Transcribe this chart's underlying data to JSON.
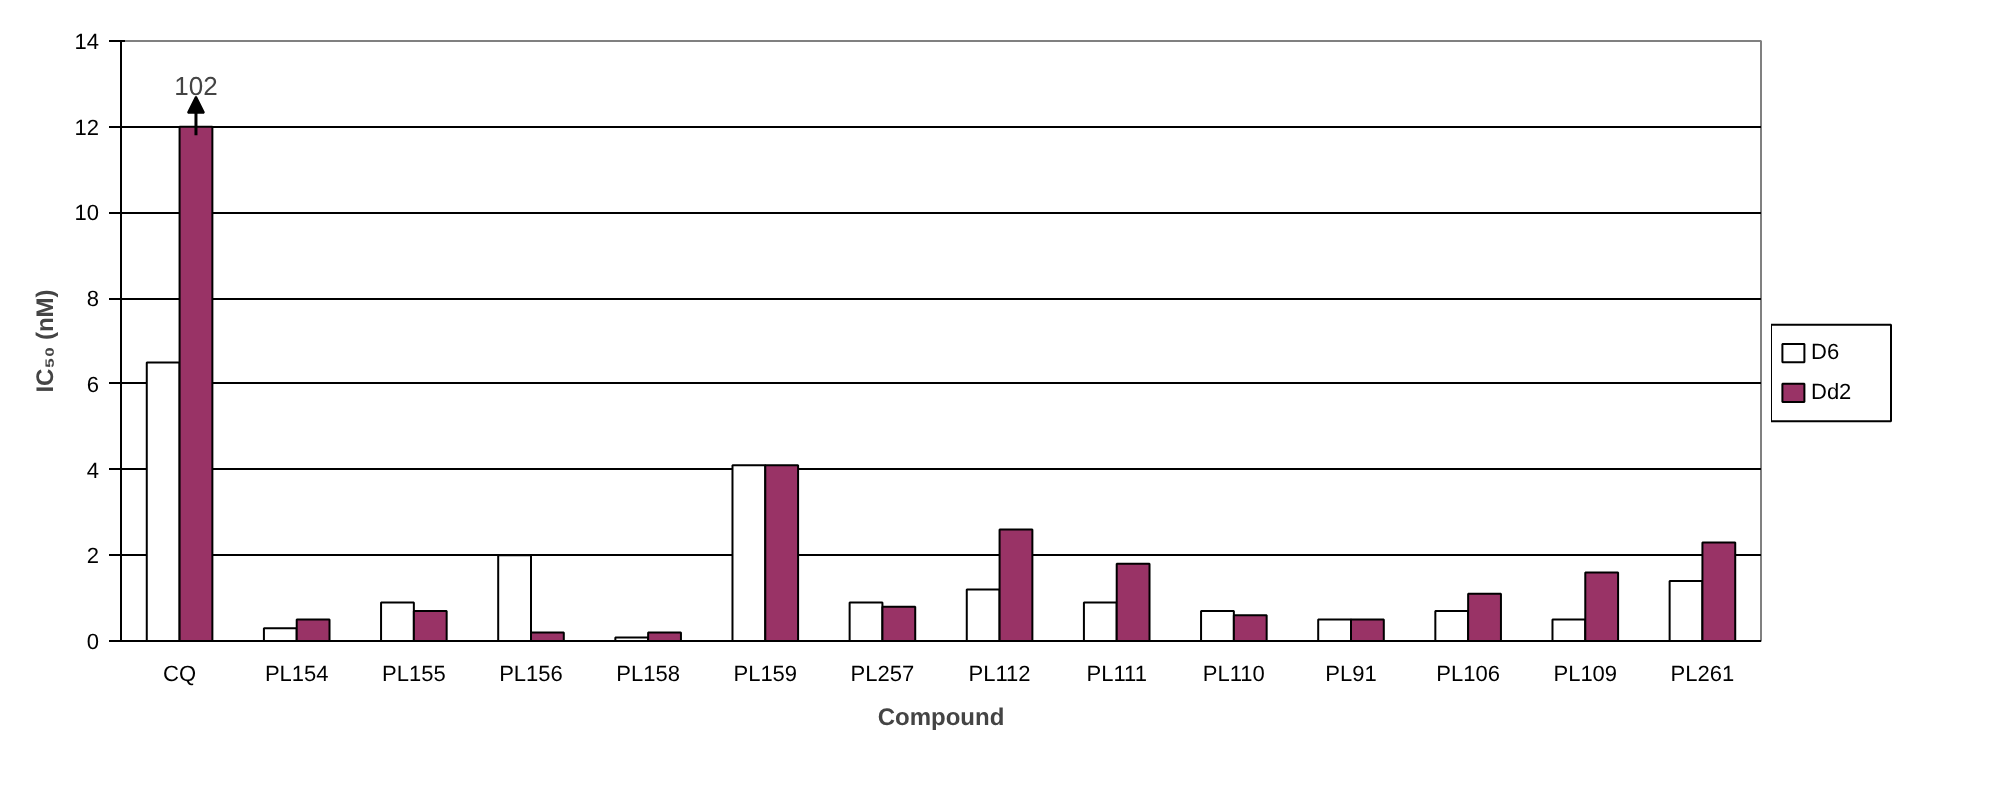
{
  "chart_data": {
    "type": "bar",
    "xlabel": "Compound",
    "ylabel": "IC₅₀ (nM)",
    "categories": [
      "CQ",
      "PL154",
      "PL155",
      "PL156",
      "PL158",
      "PL159",
      "PL257",
      "PL112",
      "PL111",
      "PL110",
      "PL91",
      "PL106",
      "PL109",
      "PL261"
    ],
    "series": [
      {
        "name": "D6",
        "color": "#ffffff",
        "values": [
          6.5,
          0.3,
          0.9,
          2.0,
          0.08,
          4.1,
          0.9,
          1.2,
          0.9,
          0.7,
          0.5,
          0.7,
          0.5,
          1.4
        ]
      },
      {
        "name": "Dd2",
        "color": "#993366",
        "values": [
          12,
          0.5,
          0.7,
          0.2,
          0.2,
          4.1,
          0.8,
          2.6,
          1.8,
          0.6,
          0.5,
          1.1,
          1.6,
          2.3
        ]
      }
    ],
    "ylim": [
      0,
      14
    ],
    "yticks": [
      0,
      2,
      4,
      6,
      8,
      10,
      12,
      14
    ],
    "grid": "y",
    "legend": "right",
    "annotations": [
      {
        "text": "102",
        "x": "CQ",
        "y": 12
      }
    ]
  }
}
